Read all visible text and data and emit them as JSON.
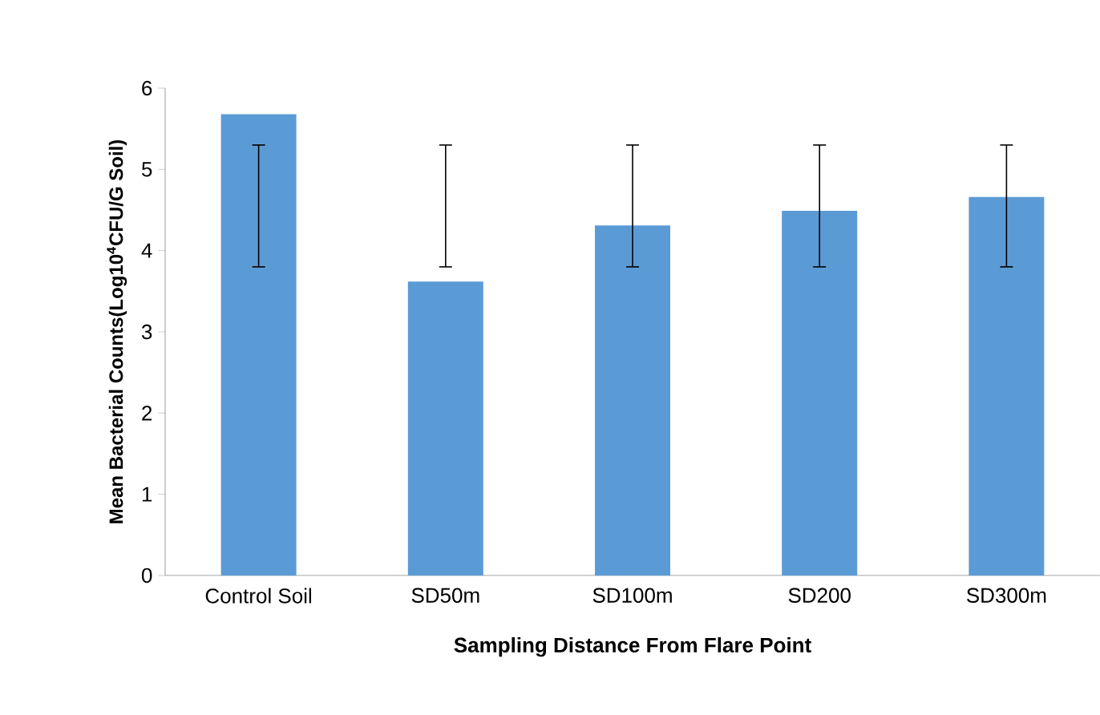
{
  "chart_data": {
    "type": "bar",
    "xlabel": "Sampling Distance From Flare Point",
    "ylabel": "Mean Bacterial Counts(Log10$^{4}$CFU/G Soil)",
    "categories": [
      "Control Soil",
      "SD50m",
      "SD100m",
      "SD200",
      "SD300m"
    ],
    "values": [
      5.68,
      3.62,
      4.31,
      4.49,
      4.66
    ],
    "errors": [
      [
        3.8,
        5.3
      ],
      [
        3.8,
        5.3
      ],
      [
        3.8,
        5.3
      ],
      [
        3.8,
        5.3
      ],
      [
        3.8,
        5.3
      ]
    ],
    "color": "#5b9bd5",
    "ylim": [
      0,
      6
    ],
    "yticks": [
      0,
      1,
      2,
      3,
      4,
      5,
      6
    ]
  }
}
